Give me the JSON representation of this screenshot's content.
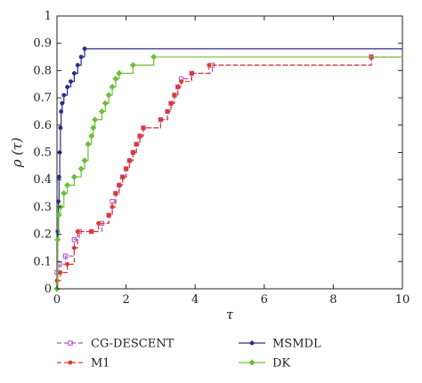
{
  "chart_data": {
    "type": "line",
    "subtype": "step",
    "xlabel": "τ",
    "ylabel": "ρ (τ)",
    "xlim": [
      0,
      10
    ],
    "ylim": [
      0,
      1
    ],
    "xticks": [
      "0",
      "2",
      "4",
      "6",
      "8",
      "10"
    ],
    "yticks": [
      "0",
      "0.1",
      "0.2",
      "0.3",
      "0.4",
      "0.5",
      "0.6",
      "0.7",
      "0.8",
      "0.9",
      "1"
    ],
    "grid": false,
    "legend_position": "bottom",
    "series": [
      {
        "name": "CG-DESCENT",
        "color": "#b050c8",
        "style": "dashed",
        "marker": "square",
        "points": [
          [
            0.0,
            0.06
          ],
          [
            0.08,
            0.09
          ],
          [
            0.25,
            0.12
          ],
          [
            0.5,
            0.18
          ],
          [
            0.65,
            0.21
          ],
          [
            1.0,
            0.21
          ],
          [
            1.3,
            0.24
          ],
          [
            1.5,
            0.27
          ],
          [
            1.6,
            0.32
          ],
          [
            1.7,
            0.35
          ],
          [
            1.8,
            0.38
          ],
          [
            1.9,
            0.41
          ],
          [
            2.0,
            0.44
          ],
          [
            2.1,
            0.47
          ],
          [
            2.2,
            0.5
          ],
          [
            2.3,
            0.53
          ],
          [
            2.4,
            0.56
          ],
          [
            2.5,
            0.59
          ],
          [
            3.0,
            0.62
          ],
          [
            3.2,
            0.65
          ],
          [
            3.3,
            0.68
          ],
          [
            3.4,
            0.71
          ],
          [
            3.5,
            0.74
          ],
          [
            3.6,
            0.77
          ],
          [
            3.9,
            0.79
          ],
          [
            4.5,
            0.82
          ],
          [
            9.1,
            0.85
          ],
          [
            10,
            0.85
          ]
        ]
      },
      {
        "name": "MSMDL",
        "color": "#2a2c8c",
        "style": "solid",
        "marker": "dot",
        "points": [
          [
            0.0,
            0.0
          ],
          [
            0.02,
            0.21
          ],
          [
            0.04,
            0.32
          ],
          [
            0.06,
            0.41
          ],
          [
            0.08,
            0.5
          ],
          [
            0.1,
            0.59
          ],
          [
            0.12,
            0.65
          ],
          [
            0.15,
            0.68
          ],
          [
            0.2,
            0.71
          ],
          [
            0.3,
            0.74
          ],
          [
            0.4,
            0.76
          ],
          [
            0.5,
            0.79
          ],
          [
            0.6,
            0.82
          ],
          [
            0.7,
            0.85
          ],
          [
            0.8,
            0.88
          ],
          [
            10,
            0.88
          ]
        ]
      },
      {
        "name": "M1",
        "color": "#e03a1e",
        "style": "dashed",
        "marker": "dot",
        "points": [
          [
            0.0,
            0.03
          ],
          [
            0.1,
            0.06
          ],
          [
            0.3,
            0.09
          ],
          [
            0.5,
            0.15
          ],
          [
            0.6,
            0.21
          ],
          [
            1.0,
            0.21
          ],
          [
            1.2,
            0.24
          ],
          [
            1.5,
            0.27
          ],
          [
            1.6,
            0.3
          ],
          [
            1.7,
            0.35
          ],
          [
            1.8,
            0.38
          ],
          [
            1.9,
            0.41
          ],
          [
            2.0,
            0.44
          ],
          [
            2.1,
            0.47
          ],
          [
            2.2,
            0.5
          ],
          [
            2.3,
            0.53
          ],
          [
            2.4,
            0.56
          ],
          [
            2.5,
            0.59
          ],
          [
            3.0,
            0.62
          ],
          [
            3.2,
            0.65
          ],
          [
            3.3,
            0.68
          ],
          [
            3.4,
            0.71
          ],
          [
            3.5,
            0.74
          ],
          [
            3.6,
            0.76
          ],
          [
            3.9,
            0.79
          ],
          [
            4.4,
            0.82
          ],
          [
            9.1,
            0.85
          ],
          [
            10,
            0.85
          ]
        ]
      },
      {
        "name": "DK",
        "color": "#6cbf3a",
        "style": "solid",
        "marker": "diamond",
        "points": [
          [
            0.0,
            0.0
          ],
          [
            0.02,
            0.18
          ],
          [
            0.05,
            0.27
          ],
          [
            0.1,
            0.3
          ],
          [
            0.2,
            0.35
          ],
          [
            0.3,
            0.38
          ],
          [
            0.5,
            0.41
          ],
          [
            0.7,
            0.44
          ],
          [
            0.8,
            0.47
          ],
          [
            0.9,
            0.53
          ],
          [
            1.0,
            0.56
          ],
          [
            1.05,
            0.59
          ],
          [
            1.1,
            0.62
          ],
          [
            1.3,
            0.65
          ],
          [
            1.4,
            0.68
          ],
          [
            1.5,
            0.71
          ],
          [
            1.6,
            0.74
          ],
          [
            1.7,
            0.77
          ],
          [
            1.8,
            0.79
          ],
          [
            2.2,
            0.82
          ],
          [
            2.8,
            0.85
          ],
          [
            10,
            0.85
          ]
        ]
      }
    ]
  }
}
